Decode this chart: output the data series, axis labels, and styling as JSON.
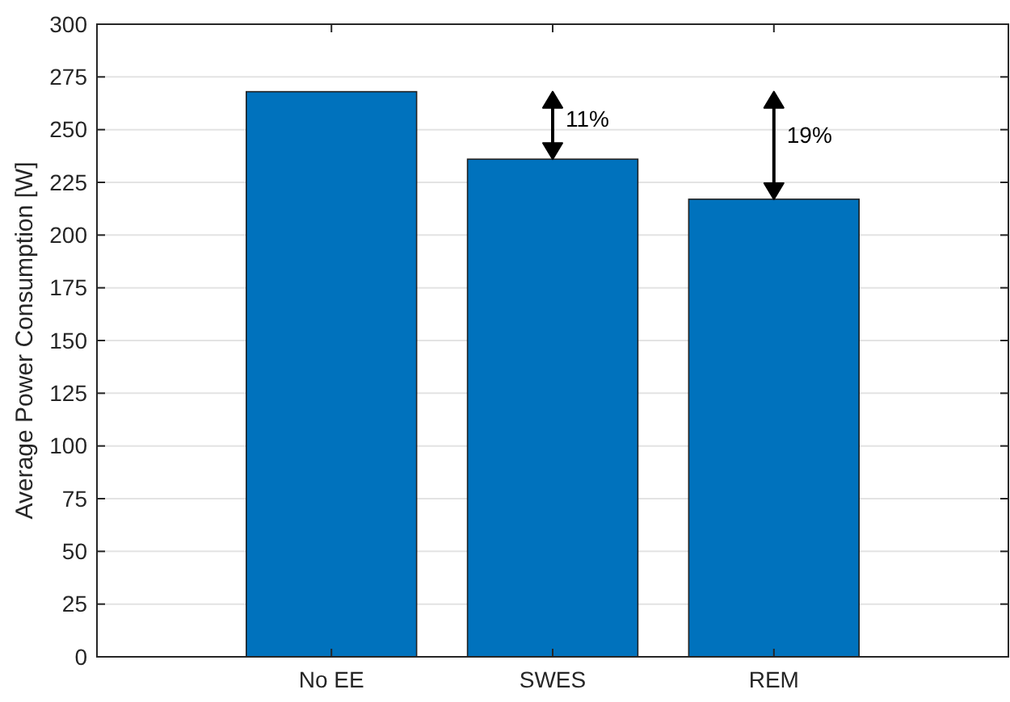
{
  "chart_data": {
    "type": "bar",
    "ylabel": "Average Power Consumption [W]",
    "categories": [
      "No EE",
      "SWES",
      "REM"
    ],
    "values": [
      268,
      236,
      217
    ],
    "color": "#0072bd",
    "ylim": [
      0,
      300
    ],
    "yticks": [
      0,
      25,
      50,
      75,
      100,
      125,
      150,
      175,
      200,
      225,
      250,
      275,
      300
    ],
    "grid": "y",
    "annotations": [
      "11%",
      "19%"
    ]
  }
}
